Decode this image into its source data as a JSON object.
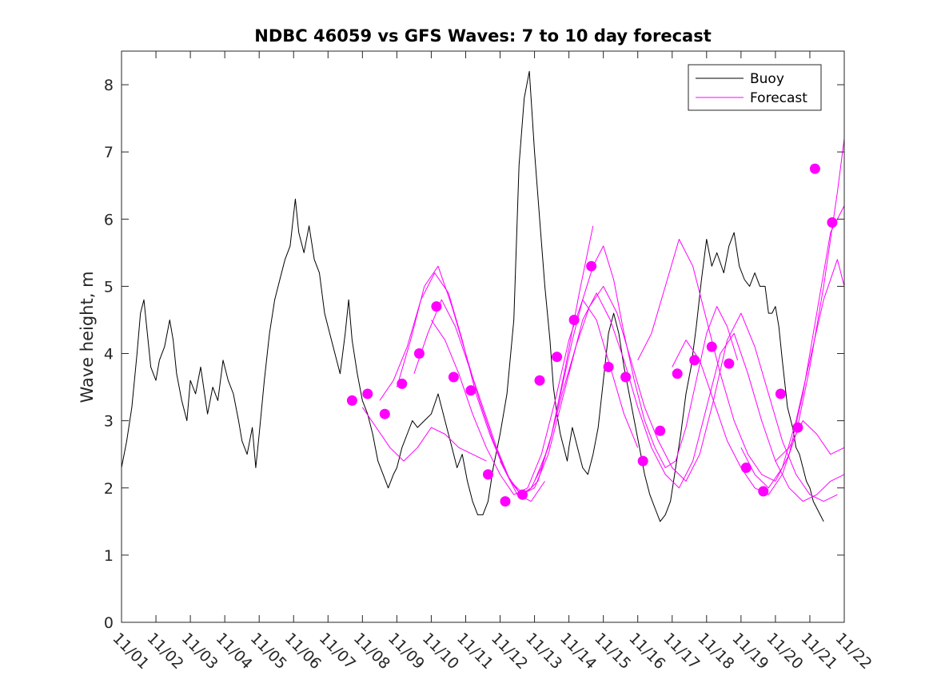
{
  "chart_data": {
    "type": "line",
    "title": "NDBC 46059 vs GFS Waves: 7 to 10 day forecast",
    "xlabel": "",
    "ylabel": "Wave height, m",
    "xlim": [
      0,
      21
    ],
    "ylim": [
      0,
      8.5
    ],
    "x_ticks": [
      {
        "x": 0,
        "label": "11/01"
      },
      {
        "x": 1,
        "label": "11/02"
      },
      {
        "x": 2,
        "label": "11/03"
      },
      {
        "x": 3,
        "label": "11/04"
      },
      {
        "x": 4,
        "label": "11/05"
      },
      {
        "x": 5,
        "label": "11/06"
      },
      {
        "x": 6,
        "label": "11/07"
      },
      {
        "x": 7,
        "label": "11/08"
      },
      {
        "x": 8,
        "label": "11/09"
      },
      {
        "x": 9,
        "label": "11/10"
      },
      {
        "x": 10,
        "label": "11/11"
      },
      {
        "x": 11,
        "label": "11/12"
      },
      {
        "x": 12,
        "label": "11/13"
      },
      {
        "x": 13,
        "label": "11/14"
      },
      {
        "x": 14,
        "label": "11/15"
      },
      {
        "x": 15,
        "label": "11/16"
      },
      {
        "x": 16,
        "label": "11/17"
      },
      {
        "x": 17,
        "label": "11/18"
      },
      {
        "x": 18,
        "label": "11/19"
      },
      {
        "x": 19,
        "label": "11/20"
      },
      {
        "x": 20,
        "label": "11/21"
      },
      {
        "x": 21,
        "label": "11/22"
      }
    ],
    "y_ticks": [
      0,
      1,
      2,
      3,
      4,
      5,
      6,
      7,
      8
    ],
    "legend": {
      "position": "top-right",
      "entries": [
        "Buoy",
        "Forecast"
      ]
    },
    "colors": {
      "buoy": "#000000",
      "forecast": "#ff00ff",
      "markers": "#ff00ff"
    },
    "series": [
      {
        "name": "Buoy",
        "x": [
          0,
          0.15,
          0.3,
          0.45,
          0.55,
          0.65,
          0.75,
          0.85,
          1.0,
          1.1,
          1.25,
          1.4,
          1.5,
          1.6,
          1.75,
          1.9,
          2.0,
          2.15,
          2.3,
          2.5,
          2.65,
          2.8,
          2.95,
          3.1,
          3.25,
          3.4,
          3.5,
          3.65,
          3.8,
          3.9,
          4.0,
          4.15,
          4.3,
          4.45,
          4.6,
          4.75,
          4.9,
          5.05,
          5.15,
          5.3,
          5.45,
          5.6,
          5.75,
          5.9,
          6.05,
          6.2,
          6.35,
          6.5,
          6.6,
          6.7,
          6.85,
          7.0,
          7.15,
          7.3,
          7.45,
          7.6,
          7.75,
          7.9,
          8.0,
          8.15,
          8.3,
          8.45,
          8.6,
          8.8,
          9.0,
          9.2,
          9.4,
          9.6,
          9.75,
          9.9,
          10.05,
          10.2,
          10.35,
          10.5,
          10.65,
          10.8,
          11.0,
          11.2,
          11.4,
          11.55,
          11.7,
          11.85,
          12.0,
          12.15,
          12.3,
          12.45,
          12.55,
          12.65,
          12.75,
          12.85,
          12.95,
          13.0,
          13.1,
          13.2,
          13.3,
          13.4,
          13.55,
          13.7,
          13.85,
          14.0,
          14.15,
          14.3,
          14.45,
          14.6,
          14.75,
          14.9,
          15.05,
          15.2,
          15.35,
          15.5,
          15.65,
          15.8,
          15.95,
          16.1,
          16.25,
          16.4,
          16.55,
          16.7,
          16.85,
          17.0,
          17.15,
          17.3,
          17.5,
          17.65,
          17.8,
          17.95,
          18.1,
          18.25,
          18.4,
          18.55,
          18.7,
          18.8,
          18.9,
          19.0,
          19.1,
          19.2,
          19.35,
          19.5,
          19.6,
          19.7,
          19.8,
          19.9,
          20.0,
          20.1,
          20.2,
          20.3,
          20.4
        ],
        "values": [
          2.3,
          2.7,
          3.2,
          4.0,
          4.6,
          4.8,
          4.3,
          3.8,
          3.6,
          3.9,
          4.1,
          4.5,
          4.2,
          3.7,
          3.3,
          3.0,
          3.6,
          3.4,
          3.8,
          3.1,
          3.5,
          3.3,
          3.9,
          3.6,
          3.4,
          3.0,
          2.7,
          2.5,
          2.9,
          2.3,
          2.8,
          3.6,
          4.3,
          4.8,
          5.1,
          5.4,
          5.6,
          6.3,
          5.8,
          5.5,
          5.9,
          5.4,
          5.2,
          4.6,
          4.3,
          4.0,
          3.7,
          4.3,
          4.8,
          4.2,
          3.7,
          3.3,
          3.1,
          2.8,
          2.4,
          2.2,
          2.0,
          2.2,
          2.3,
          2.6,
          2.8,
          3.0,
          2.9,
          3.0,
          3.1,
          3.4,
          3.0,
          2.6,
          2.3,
          2.5,
          2.1,
          1.8,
          1.6,
          1.6,
          1.8,
          2.3,
          2.8,
          3.4,
          4.5,
          6.8,
          7.8,
          8.2,
          7.0,
          6.0,
          5.0,
          4.2,
          3.5,
          3.1,
          2.8,
          2.6,
          2.4,
          2.6,
          2.9,
          2.7,
          2.5,
          2.3,
          2.2,
          2.5,
          2.9,
          3.6,
          4.3,
          4.6,
          4.3,
          3.8,
          3.4,
          3.0,
          2.6,
          2.2,
          1.9,
          1.7,
          1.5,
          1.6,
          1.8,
          2.3,
          2.8,
          3.4,
          3.8,
          4.4,
          5.1,
          5.7,
          5.3,
          5.5,
          5.2,
          5.6,
          5.8,
          5.3,
          5.1,
          5.0,
          5.2,
          5.0,
          5.0,
          4.6,
          4.6,
          4.7,
          4.4,
          3.9,
          3.2,
          2.9,
          2.6,
          2.5,
          2.3,
          2.1,
          2.0,
          1.8,
          1.7,
          1.6,
          1.5
        ]
      },
      {
        "name": "Forecast",
        "x": [
          7.0,
          7.4,
          7.8,
          8.2,
          8.6,
          9.0,
          9.4,
          9.8,
          10.2,
          10.6
        ],
        "values": [
          3.2,
          2.9,
          2.6,
          2.4,
          2.6,
          2.9,
          2.8,
          2.6,
          2.5,
          2.4
        ]
      },
      {
        "name": "Forecast",
        "x": [
          7.5,
          7.9,
          8.3,
          8.7,
          9.1,
          9.5,
          9.9,
          10.3,
          10.7,
          11.1,
          11.5,
          11.9,
          12.3
        ],
        "values": [
          3.3,
          3.6,
          4.1,
          4.8,
          5.2,
          4.9,
          4.2,
          3.4,
          2.8,
          2.3,
          1.9,
          1.8,
          2.1
        ]
      },
      {
        "name": "Forecast",
        "x": [
          8.0,
          8.4,
          8.8,
          9.2,
          9.6,
          10.0,
          10.4,
          10.8,
          11.2,
          11.6,
          12.0,
          12.4,
          12.8,
          13.2
        ],
        "values": [
          3.5,
          4.2,
          5.0,
          5.3,
          4.7,
          4.0,
          3.3,
          2.7,
          2.2,
          1.9,
          2.0,
          2.5,
          3.3,
          4.1
        ]
      },
      {
        "name": "Forecast",
        "x": [
          8.5,
          8.9,
          9.3,
          9.7,
          10.1,
          10.5,
          10.9,
          11.3,
          11.7,
          12.1,
          12.5,
          12.9,
          13.3,
          13.7
        ],
        "values": [
          3.7,
          4.3,
          4.8,
          4.4,
          3.8,
          3.2,
          2.6,
          2.1,
          1.9,
          2.1,
          2.8,
          3.8,
          4.9,
          5.9
        ]
      },
      {
        "name": "Forecast",
        "x": [
          9.0,
          9.4,
          9.8,
          10.2,
          10.6,
          11.0,
          11.4,
          11.8,
          12.2,
          12.6,
          13.0,
          13.4,
          13.8,
          14.2,
          14.6,
          15.0
        ],
        "values": [
          4.5,
          4.2,
          3.7,
          3.1,
          2.6,
          2.2,
          1.9,
          2.0,
          2.5,
          3.3,
          4.2,
          4.8,
          4.5,
          3.8,
          3.1,
          2.6
        ]
      },
      {
        "name": "Forecast",
        "x": [
          11.0,
          11.3,
          11.6,
          11.9,
          12.2,
          12.5,
          12.8,
          13.1,
          13.4,
          13.7,
          14.0,
          14.3,
          14.6,
          14.9,
          15.2,
          15.5,
          15.8,
          16.1,
          16.4,
          16.7,
          17.0,
          17.3,
          17.6,
          17.9
        ],
        "values": [
          2.4,
          2.1,
          1.9,
          2.0,
          2.3,
          2.8,
          3.5,
          4.2,
          4.8,
          5.3,
          5.6,
          5.1,
          4.3,
          3.6,
          3.0,
          2.6,
          2.3,
          2.4,
          2.9,
          3.6,
          4.3,
          4.7,
          4.4,
          3.9
        ]
      },
      {
        "name": "Forecast",
        "x": [
          12.0,
          12.4,
          12.8,
          13.2,
          13.6,
          14.0,
          14.4,
          14.8,
          15.2,
          15.6,
          16.0,
          16.4,
          16.8,
          17.2,
          17.6,
          18.0,
          18.4,
          18.8,
          19.2,
          19.6,
          20.0,
          20.4,
          20.8
        ],
        "values": [
          2.1,
          2.6,
          3.4,
          4.1,
          4.7,
          5.0,
          4.6,
          3.9,
          3.2,
          2.7,
          2.3,
          2.1,
          2.5,
          3.3,
          4.2,
          4.6,
          4.1,
          3.4,
          2.7,
          2.2,
          1.9,
          1.8,
          1.9
        ]
      },
      {
        "name": "Forecast",
        "x": [
          13.0,
          13.4,
          13.8,
          14.2,
          14.6,
          15.0,
          15.4,
          15.8,
          16.2,
          16.6,
          17.0,
          17.4,
          17.8,
          18.2,
          18.6,
          19.0,
          19.4,
          19.8,
          20.2,
          20.6,
          21.0
        ],
        "values": [
          3.7,
          4.5,
          4.9,
          4.5,
          3.9,
          3.2,
          2.6,
          2.2,
          2.0,
          2.4,
          3.2,
          4.0,
          4.3,
          3.7,
          3.0,
          2.4,
          2.0,
          1.8,
          1.9,
          2.1,
          2.2
        ]
      },
      {
        "name": "Forecast",
        "x": [
          15.0,
          15.4,
          15.8,
          16.2,
          16.6,
          17.0,
          17.4,
          17.8,
          18.2,
          18.6,
          19.0,
          19.4,
          19.8,
          20.2,
          20.6,
          21.0
        ],
        "values": [
          3.9,
          4.3,
          5.0,
          5.7,
          5.3,
          4.5,
          3.7,
          3.0,
          2.5,
          2.2,
          2.1,
          2.5,
          3.4,
          4.6,
          5.8,
          6.2
        ]
      },
      {
        "name": "Forecast",
        "x": [
          16.0,
          16.4,
          16.8,
          17.2,
          17.6,
          18.0,
          18.4,
          18.8,
          19.2,
          19.6,
          20.0,
          20.4,
          20.8,
          21.0
        ],
        "values": [
          3.8,
          4.2,
          3.9,
          3.3,
          2.7,
          2.3,
          2.0,
          1.9,
          2.2,
          2.8,
          3.8,
          5.0,
          6.4,
          7.2
        ]
      },
      {
        "name": "Forecast",
        "x": [
          18.0,
          18.4,
          18.8,
          19.2,
          19.6,
          20.0,
          20.4,
          20.8,
          21.0
        ],
        "values": [
          2.6,
          2.2,
          2.0,
          2.3,
          3.0,
          3.9,
          4.8,
          5.4,
          5.0
        ]
      },
      {
        "name": "Forecast",
        "x": [
          19.0,
          19.4,
          19.8,
          20.2,
          20.6,
          21.0
        ],
        "values": [
          2.4,
          2.6,
          3.0,
          2.8,
          2.5,
          2.6
        ]
      }
    ],
    "markers": {
      "name": "Forecast (marker)",
      "x": [
        6.7,
        7.15,
        7.65,
        8.15,
        8.65,
        9.15,
        9.65,
        10.15,
        10.65,
        11.15,
        11.65,
        12.15,
        12.65,
        13.15,
        13.65,
        14.15,
        14.65,
        15.15,
        15.65,
        16.15,
        16.65,
        17.15,
        17.65,
        18.15,
        18.65,
        19.15,
        19.65,
        20.15,
        20.65
      ],
      "values": [
        3.3,
        3.4,
        3.1,
        3.55,
        4.0,
        4.7,
        3.65,
        3.45,
        2.2,
        1.8,
        1.9,
        3.6,
        3.95,
        4.5,
        5.3,
        3.8,
        3.65,
        2.4,
        2.85,
        3.7,
        3.9,
        4.1,
        3.85,
        2.3,
        1.95,
        3.4,
        2.9,
        6.75,
        5.95
      ]
    }
  }
}
